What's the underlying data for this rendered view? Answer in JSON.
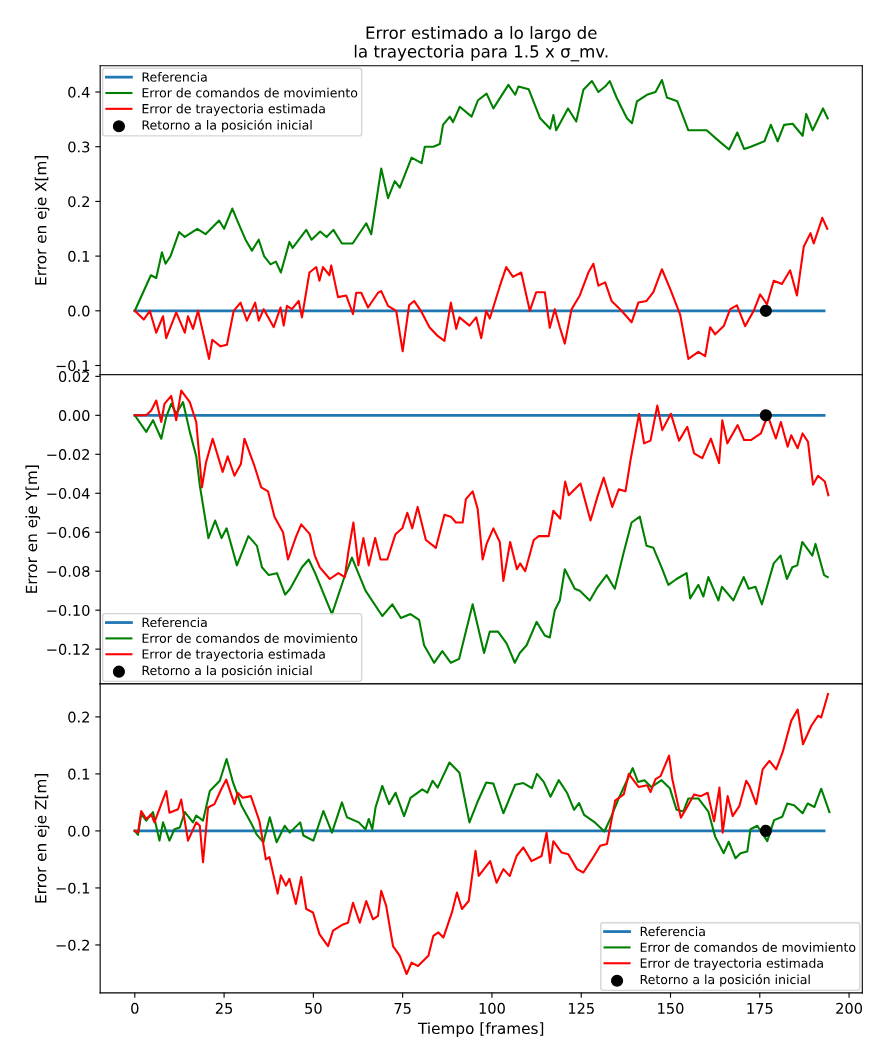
{
  "chart_data": [
    {
      "type": "line",
      "title": "Error estimado a lo largo de\nla trayectoria para 1.5 x σ_mv.",
      "ylabel": "Error en eje X[m]",
      "xlim": [
        -9.7,
        203.7
      ],
      "ylim": [
        -0.117,
        0.448
      ],
      "yticks": [
        {
          "value": -0.1,
          "label": "−0.1"
        },
        {
          "value": 0.0,
          "label": "0.0"
        },
        {
          "value": 0.1,
          "label": "0.1"
        },
        {
          "value": 0.2,
          "label": "0.2"
        },
        {
          "value": 0.3,
          "label": "0.3"
        },
        {
          "value": 0.4,
          "label": "0.4"
        }
      ],
      "tick_labels": "y",
      "legend": "top left",
      "grid": false,
      "series": [
        {
          "name": "Referencia",
          "color": "#1f77b4",
          "x": [
            0,
            193
          ],
          "values": [
            0,
            0
          ]
        },
        {
          "name": "Error de comandos de movimiento",
          "color": "#008000",
          "x": [
            0,
            4.5,
            6,
            7.6,
            8.6,
            10,
            12.4,
            14,
            17.5,
            19.8,
            23.6,
            25,
            27.3,
            28.7,
            31,
            32.8,
            34.7,
            36.2,
            38,
            39.5,
            40.9,
            43.3,
            44.2,
            48,
            49.5,
            51.9,
            53.7,
            55.6,
            58,
            61,
            64.8,
            66.2,
            69,
            70.9,
            72.8,
            74.2,
            77.5,
            80.3,
            81.2,
            83.6,
            85.4,
            86.3,
            88.2,
            89.1,
            91,
            94.3,
            96.1,
            98.5,
            100.4,
            104.6,
            106.5,
            107.4,
            110.3,
            113.5,
            116.3,
            117.2,
            118,
            121.3,
            123.6,
            125.6,
            128,
            129.8,
            131.7,
            133,
            134.9,
            137.8,
            139.2,
            140.6,
            143.4,
            145.8,
            147.6,
            149,
            151.9,
            155,
            160.1,
            164,
            166.4,
            168.7,
            170.6,
            172.5,
            176.3,
            178.1,
            180,
            181.8,
            184.2,
            187,
            188,
            189.8,
            192.7,
            194
          ],
          "values": [
            0,
            0.065,
            0.06,
            0.107,
            0.086,
            0.1,
            0.144,
            0.135,
            0.15,
            0.14,
            0.165,
            0.15,
            0.187,
            0.165,
            0.13,
            0.11,
            0.13,
            0.1,
            0.085,
            0.09,
            0.07,
            0.126,
            0.115,
            0.148,
            0.13,
            0.145,
            0.135,
            0.148,
            0.123,
            0.123,
            0.16,
            0.14,
            0.26,
            0.206,
            0.237,
            0.225,
            0.28,
            0.27,
            0.3,
            0.3,
            0.305,
            0.34,
            0.355,
            0.345,
            0.373,
            0.355,
            0.385,
            0.397,
            0.37,
            0.413,
            0.395,
            0.41,
            0.405,
            0.352,
            0.333,
            0.358,
            0.33,
            0.37,
            0.346,
            0.404,
            0.42,
            0.4,
            0.41,
            0.42,
            0.39,
            0.352,
            0.343,
            0.383,
            0.395,
            0.4,
            0.422,
            0.39,
            0.383,
            0.33,
            0.33,
            0.308,
            0.295,
            0.326,
            0.296,
            0.3,
            0.31,
            0.34,
            0.31,
            0.34,
            0.342,
            0.32,
            0.36,
            0.33,
            0.37,
            0.352
          ]
        },
        {
          "name": "Error de trayectoria estimada",
          "color": "#ff0000",
          "x": [
            0,
            2.5,
            4.2,
            6,
            7.9,
            8.8,
            11.6,
            14,
            14.9,
            16.3,
            17.7,
            20.8,
            21.7,
            24,
            25.8,
            27.7,
            29.6,
            31.4,
            33.7,
            34.7,
            36.1,
            38.9,
            40.8,
            41.7,
            42.6,
            44,
            45.9,
            46.8,
            48.9,
            50.8,
            51.7,
            52.7,
            54.5,
            55,
            56.9,
            59.2,
            61.1,
            62,
            63.4,
            65.3,
            68.1,
            69,
            70.9,
            73.2,
            75,
            76.8,
            78.2,
            80.1,
            82.5,
            84.8,
            86.7,
            88.5,
            90,
            90.9,
            93.7,
            95.6,
            97,
            98.4,
            99.4,
            102.2,
            104,
            105.9,
            108.2,
            110.6,
            112.4,
            114.8,
            116.2,
            117.6,
            119,
            120.4,
            122.3,
            124.6,
            127,
            128.4,
            129.8,
            131.7,
            133.5,
            136.3,
            139.1,
            141,
            143.3,
            145.2,
            147.6,
            149.9,
            152.7,
            155,
            157.8,
            159.7,
            161.1,
            162.5,
            164.9,
            166.7,
            168.6,
            170.9,
            173.3,
            175.1,
            177,
            178.9,
            181.2,
            183.5,
            185.4,
            187.3,
            189.2,
            190.1,
            192.5,
            193.9
          ],
          "values": [
            0,
            -0.016,
            0.0,
            -0.04,
            -0.01,
            -0.05,
            -0.003,
            -0.04,
            -0.01,
            -0.033,
            0,
            -0.088,
            -0.053,
            -0.065,
            -0.062,
            0,
            0.015,
            -0.018,
            0.015,
            -0.018,
            0.003,
            -0.03,
            0.006,
            -0.027,
            0.009,
            0.003,
            0.018,
            -0.012,
            0.07,
            0.08,
            0.055,
            0.08,
            0.065,
            0.083,
            0.025,
            0.028,
            -0.006,
            0.033,
            0.033,
            0.006,
            0.033,
            0.036,
            0.009,
            0,
            -0.074,
            0.01,
            0.018,
            0,
            -0.03,
            -0.046,
            -0.055,
            0.015,
            -0.033,
            -0.012,
            -0.027,
            -0.012,
            -0.05,
            0,
            -0.014,
            0.045,
            0.08,
            0.062,
            0.07,
            0,
            0.034,
            0.034,
            -0.031,
            0.003,
            -0.03,
            -0.06,
            0.003,
            0.028,
            0.07,
            0.086,
            0.046,
            0.052,
            0.018,
            0,
            -0.021,
            0.015,
            0.018,
            0.034,
            0.076,
            0.04,
            -0.007,
            -0.088,
            -0.075,
            -0.083,
            -0.03,
            -0.043,
            -0.028,
            0.003,
            0.01,
            -0.028,
            0,
            0.03,
            0.012,
            0.055,
            0.049,
            0.074,
            0.028,
            0.117,
            0.142,
            0.123,
            0.17,
            0.15
          ]
        },
        {
          "name": "Retorno a la posición inicial",
          "type": "scatter",
          "color": "#000000",
          "x": [
            176.7
          ],
          "values": [
            0
          ]
        }
      ]
    },
    {
      "type": "line",
      "ylabel": "Error en eje Y[m]",
      "xlim": [
        -9.7,
        203.7
      ],
      "ylim": [
        -0.1378,
        0.0208
      ],
      "yticks": [
        {
          "value": -0.12,
          "label": "−0.12"
        },
        {
          "value": -0.1,
          "label": "−0.10"
        },
        {
          "value": -0.08,
          "label": "−0.08"
        },
        {
          "value": -0.06,
          "label": "−0.06"
        },
        {
          "value": -0.04,
          "label": "−0.04"
        },
        {
          "value": -0.02,
          "label": "−0.02"
        },
        {
          "value": 0.0,
          "label": "0.00"
        },
        {
          "value": 0.02,
          "label": "0.02"
        }
      ],
      "tick_labels": "y",
      "legend": "bottom left",
      "grid": false,
      "series": [
        {
          "name": "Referencia",
          "color": "#1f77b4",
          "x": [
            0,
            193
          ],
          "values": [
            0,
            0
          ]
        },
        {
          "name": "Error de comandos de movimiento",
          "color": "#008000",
          "x": [
            0,
            3.2,
            5.1,
            7.4,
            8.8,
            10.2,
            11.6,
            13.5,
            15.4,
            17.2,
            18.2,
            20.6,
            22.5,
            24.3,
            25.7,
            28.6,
            31.8,
            34.2,
            35.6,
            37.5,
            39.8,
            42.1,
            43.5,
            46.8,
            48.7,
            50.5,
            55.2,
            58.5,
            60.8,
            64.6,
            69.3,
            72.1,
            74.5,
            77.2,
            79.6,
            81,
            83.8,
            86.1,
            88.5,
            90.8,
            92.7,
            94.6,
            97.8,
            99.4,
            101.7,
            104.1,
            106.4,
            107.8,
            109.7,
            112.5,
            114.8,
            116.2,
            117.6,
            119,
            120.4,
            123.2,
            124.6,
            127.4,
            129.3,
            132.1,
            134.4,
            136.8,
            139.1,
            141.4,
            143.3,
            145.2,
            147.5,
            149.4,
            151.7,
            154.5,
            155.5,
            157.8,
            159.2,
            160.6,
            163.4,
            164.4,
            167.6,
            170.5,
            171.9,
            173.8,
            175.6,
            178.9,
            180.8,
            182.6,
            184.1,
            185.5,
            186.9,
            189.7,
            190.6,
            193,
            194
          ],
          "values": [
            0,
            -0.0085,
            -0.0025,
            -0.012,
            -0.0008,
            0.0059,
            0.0008,
            0.0068,
            -0.0085,
            -0.021,
            -0.036,
            -0.063,
            -0.054,
            -0.063,
            -0.058,
            -0.077,
            -0.062,
            -0.067,
            -0.078,
            -0.082,
            -0.081,
            -0.092,
            -0.089,
            -0.078,
            -0.074,
            -0.081,
            -0.102,
            -0.084,
            -0.073,
            -0.09,
            -0.103,
            -0.097,
            -0.104,
            -0.102,
            -0.105,
            -0.118,
            -0.127,
            -0.121,
            -0.127,
            -0.125,
            -0.111,
            -0.097,
            -0.122,
            -0.111,
            -0.111,
            -0.117,
            -0.127,
            -0.122,
            -0.118,
            -0.106,
            -0.113,
            -0.114,
            -0.1,
            -0.095,
            -0.079,
            -0.089,
            -0.09,
            -0.095,
            -0.089,
            -0.082,
            -0.089,
            -0.071,
            -0.055,
            -0.052,
            -0.067,
            -0.068,
            -0.078,
            -0.087,
            -0.084,
            -0.081,
            -0.094,
            -0.087,
            -0.093,
            -0.083,
            -0.095,
            -0.088,
            -0.095,
            -0.083,
            -0.089,
            -0.088,
            -0.097,
            -0.076,
            -0.072,
            -0.084,
            -0.078,
            -0.077,
            -0.065,
            -0.072,
            -0.066,
            -0.082,
            -0.083
          ]
        },
        {
          "name": "Error de trayectoria estimada",
          "color": "#ff0000",
          "x": [
            0,
            3.2,
            4.6,
            6,
            7.4,
            8.3,
            10.2,
            11.6,
            13,
            15.4,
            17.2,
            18.8,
            19.9,
            21.8,
            24.6,
            26,
            27.9,
            29.7,
            30.7,
            33.5,
            35.4,
            37.3,
            39.1,
            41.5,
            42.9,
            45.2,
            46.6,
            49,
            50.4,
            51.8,
            54.6,
            57,
            58.8,
            59.8,
            61.2,
            62.6,
            64,
            65.5,
            67.3,
            68.8,
            70.7,
            73,
            74.9,
            76.3,
            77.7,
            79.2,
            81.5,
            84.3,
            86.7,
            88.5,
            89.9,
            91.8,
            92.7,
            94.6,
            96,
            97.4,
            98.5,
            100.4,
            102.2,
            103.2,
            105.1,
            107,
            107.9,
            109.3,
            111.7,
            113.1,
            115.9,
            117.2,
            119.1,
            120.5,
            121.5,
            124.8,
            127.6,
            129.5,
            131.3,
            133.7,
            135.5,
            137.4,
            138.8,
            141.2,
            142.6,
            144.4,
            146.3,
            147.7,
            150.1,
            152.4,
            154.7,
            156.6,
            158.9,
            161.3,
            163.6,
            164.5,
            165.9,
            168.8,
            170.6,
            172.5,
            175.3,
            177.2,
            179.5,
            180.9,
            182.8,
            183.8,
            185.6,
            187,
            188.5,
            189.9,
            191.3,
            193.2,
            194.2
          ],
          "values": [
            0,
            0,
            0.0025,
            0.0076,
            -0.0034,
            0.0059,
            0.01,
            -0.0025,
            0.0127,
            0.0068,
            -0.0034,
            -0.037,
            -0.0245,
            -0.012,
            -0.029,
            -0.021,
            -0.031,
            -0.025,
            -0.012,
            -0.026,
            -0.037,
            -0.039,
            -0.052,
            -0.06,
            -0.074,
            -0.062,
            -0.056,
            -0.061,
            -0.072,
            -0.078,
            -0.084,
            -0.081,
            -0.083,
            -0.07,
            -0.055,
            -0.077,
            -0.063,
            -0.077,
            -0.063,
            -0.074,
            -0.074,
            -0.061,
            -0.058,
            -0.05,
            -0.058,
            -0.047,
            -0.064,
            -0.068,
            -0.051,
            -0.052,
            -0.055,
            -0.055,
            -0.043,
            -0.039,
            -0.048,
            -0.074,
            -0.066,
            -0.058,
            -0.065,
            -0.085,
            -0.065,
            -0.079,
            -0.076,
            -0.08,
            -0.064,
            -0.062,
            -0.062,
            -0.049,
            -0.053,
            -0.034,
            -0.041,
            -0.035,
            -0.054,
            -0.042,
            -0.032,
            -0.047,
            -0.038,
            -0.039,
            -0.023,
            0.0008,
            -0.0144,
            -0.013,
            0.005,
            -0.0076,
            0.0008,
            -0.013,
            -0.0059,
            -0.0195,
            -0.022,
            -0.012,
            -0.0245,
            -0.0025,
            -0.0144,
            -0.005,
            -0.0127,
            -0.0127,
            -0.0093,
            0,
            -0.0119,
            -0.0034,
            -0.0161,
            -0.0102,
            -0.0169,
            -0.0093,
            -0.0136,
            -0.0356,
            -0.031,
            -0.034,
            -0.041
          ]
        },
        {
          "name": "Retorno a la posición inicial",
          "type": "scatter",
          "color": "#000000",
          "x": [
            176.7
          ],
          "values": [
            0
          ]
        }
      ]
    },
    {
      "type": "line",
      "ylabel": "Error en eje Z[m]",
      "xlabel": "Tiempo [frames]",
      "xlim": [
        -9.7,
        203.7
      ],
      "xticks": [
        0,
        25,
        50,
        75,
        100,
        125,
        150,
        175,
        200
      ],
      "ylim": [
        -0.284,
        0.258
      ],
      "yticks": [
        {
          "value": -0.2,
          "label": "−0.2"
        },
        {
          "value": -0.1,
          "label": "−0.1"
        },
        {
          "value": 0.0,
          "label": "0.0"
        },
        {
          "value": 0.1,
          "label": "0.1"
        },
        {
          "value": 0.2,
          "label": "0.2"
        }
      ],
      "legend": "bottom right",
      "grid": false,
      "series": [
        {
          "name": "Referencia",
          "color": "#1f77b4",
          "x": [
            0,
            193
          ],
          "values": [
            0,
            0
          ]
        },
        {
          "name": "Error de comandos de movimiento",
          "color": "#008000",
          "x": [
            0,
            0.9,
            1.8,
            3.2,
            5.1,
            6.9,
            7.9,
            9.7,
            11.1,
            12.6,
            14,
            16.3,
            17.2,
            19.1,
            21,
            23.8,
            25.7,
            27.5,
            29.9,
            32.7,
            34.1,
            36,
            37.8,
            39.7,
            42,
            43.4,
            46.3,
            47.2,
            50,
            52.8,
            55.2,
            58,
            59.4,
            62.7,
            64.6,
            65.5,
            66.5,
            67.4,
            69.3,
            71.2,
            73,
            75.4,
            77.2,
            80.5,
            81.9,
            83.4,
            84.8,
            88.1,
            90.9,
            93.7,
            96.1,
            98.4,
            100.4,
            103.2,
            106.5,
            108.8,
            111.2,
            112.6,
            114.5,
            116.4,
            118.7,
            121.1,
            123,
            124.4,
            125.8,
            128.6,
            131.5,
            133.4,
            135.7,
            139.4,
            140.9,
            142.7,
            144.6,
            147.5,
            149.8,
            151.7,
            153.6,
            155,
            157.8,
            160.6,
            162.5,
            164.9,
            166.3,
            168.2,
            169.6,
            171.5,
            172.4,
            174.3,
            177.1,
            179,
            181.3,
            182.7,
            184.6,
            187,
            188.4,
            190.3,
            192.2,
            194.5
          ],
          "values": [
            0,
            -0.007,
            0.03,
            0.018,
            0.033,
            -0.017,
            0.015,
            -0.017,
            0.003,
            0.006,
            0.033,
            0.015,
            0.027,
            0.018,
            0.07,
            0.088,
            0.126,
            0.085,
            0.044,
            0.012,
            -0.006,
            -0.02,
            0.024,
            -0.02,
            0.009,
            -0.003,
            0.015,
            -0.008,
            -0.017,
            0.035,
            -0.003,
            0.05,
            0.024,
            0.015,
            0.003,
            0.021,
            0.003,
            0.041,
            0.079,
            0.047,
            0.067,
            0.026,
            0.058,
            0.073,
            0.067,
            0.088,
            0.076,
            0.12,
            0.102,
            0.015,
            0.053,
            0.085,
            0.083,
            0.031,
            0.081,
            0.084,
            0.075,
            0.1,
            0.086,
            0.06,
            0.089,
            0.066,
            0.037,
            0.049,
            0.028,
            0.016,
            -0.001,
            0.025,
            0.06,
            0.11,
            0.086,
            0.089,
            0.077,
            0.089,
            0.075,
            0.037,
            0.034,
            0.057,
            0.057,
            0.034,
            -0.01,
            -0.039,
            -0.019,
            -0.048,
            -0.039,
            -0.036,
            0.003,
            0.009,
            -0.018,
            0.019,
            0.025,
            0.048,
            0.045,
            0.031,
            0.048,
            0.042,
            0.074,
            0.033
          ]
        },
        {
          "name": "Error de trayectoria estimada",
          "color": "#ff0000",
          "x": [
            0,
            0.9,
            1.8,
            3.2,
            4.6,
            5.5,
            7.4,
            8.8,
            9.7,
            12.1,
            13,
            14.9,
            17.2,
            18.2,
            19.1,
            20.5,
            22.3,
            24.2,
            25.6,
            27.9,
            28.8,
            30.2,
            32.5,
            34.9,
            36.7,
            37.7,
            40,
            40.9,
            42.3,
            43.3,
            45.1,
            46.6,
            48,
            49.9,
            51.7,
            54.1,
            55.5,
            58.3,
            59.7,
            61.1,
            63,
            64.8,
            66.7,
            68.1,
            69,
            70.4,
            72.3,
            74.2,
            76.1,
            77.5,
            79.3,
            82.2,
            83.6,
            85,
            86.4,
            88.8,
            90.2,
            91.6,
            93.5,
            95.4,
            96.3,
            99.5,
            101.3,
            103.2,
            105,
            106.9,
            108.8,
            111.1,
            113.9,
            115.3,
            116.3,
            117.2,
            119.5,
            121.4,
            123.8,
            125.6,
            128,
            130.3,
            132.2,
            134.5,
            136.9,
            138.3,
            141.1,
            143.5,
            144.4,
            145.8,
            147.2,
            149.6,
            150.5,
            152.9,
            154.3,
            156.6,
            158.5,
            160.4,
            162.2,
            163.7,
            164.6,
            166,
            167.4,
            169.3,
            171.2,
            172.1,
            174,
            175.8,
            177.7,
            179.6,
            181.4,
            183.8,
            185.6,
            187.1,
            189.4,
            191.3,
            192.2,
            194.1
          ],
          "values": [
            0,
            -0.003,
            0.035,
            0.021,
            0.029,
            0.015,
            0.047,
            0.07,
            0.032,
            0.038,
            0.055,
            -0.017,
            0.015,
            0.009,
            -0.055,
            0.041,
            0.047,
            0.073,
            0.09,
            0.047,
            0.067,
            0.058,
            0.061,
            0.017,
            -0.05,
            -0.046,
            -0.11,
            -0.078,
            -0.096,
            -0.084,
            -0.128,
            -0.081,
            -0.137,
            -0.143,
            -0.181,
            -0.202,
            -0.175,
            -0.164,
            -0.161,
            -0.126,
            -0.161,
            -0.123,
            -0.155,
            -0.149,
            -0.105,
            -0.132,
            -0.202,
            -0.219,
            -0.251,
            -0.231,
            -0.237,
            -0.219,
            -0.184,
            -0.178,
            -0.187,
            -0.143,
            -0.108,
            -0.137,
            -0.123,
            -0.035,
            -0.079,
            -0.053,
            -0.091,
            -0.067,
            -0.079,
            -0.044,
            -0.029,
            -0.053,
            -0.044,
            -0.003,
            -0.056,
            -0.018,
            -0.038,
            -0.041,
            -0.067,
            -0.073,
            -0.05,
            -0.026,
            -0.023,
            0.053,
            0.064,
            0.1,
            0.077,
            0.08,
            0.068,
            0.091,
            0.096,
            0.132,
            0.091,
            0.023,
            0.038,
            0.064,
            0.061,
            0.067,
            0.017,
            0.076,
            -0.003,
            0.061,
            0.026,
            0.044,
            0.088,
            0.079,
            0.047,
            0.108,
            0.123,
            0.108,
            0.138,
            0.193,
            0.213,
            0.152,
            0.184,
            0.202,
            0.199,
            0.24
          ]
        },
        {
          "name": "Retorno a la posición inicial",
          "type": "scatter",
          "color": "#000000",
          "x": [
            176.7
          ],
          "values": [
            0
          ]
        }
      ]
    }
  ]
}
